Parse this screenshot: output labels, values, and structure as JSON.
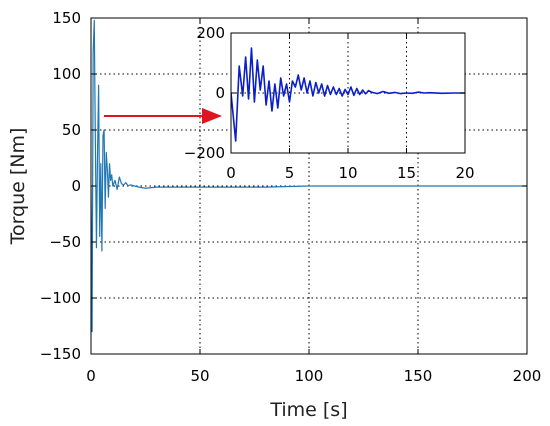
{
  "chart_data": {
    "type": "line",
    "xlabel": "Time [s]",
    "ylabel": "Torque [Nm]",
    "xlim": [
      0,
      200
    ],
    "ylim": [
      -150,
      150
    ],
    "xticks": [
      "0",
      "50",
      "100",
      "150",
      "200"
    ],
    "yticks": [
      "150",
      "100",
      "50",
      "0",
      "−50",
      "−100",
      "−150"
    ],
    "grid": true,
    "series": [
      {
        "color": "#1f77b4",
        "x": [
          0,
          0.5,
          1.0,
          1.5,
          2.0,
          2.5,
          3.0,
          3.5,
          4.0,
          4.5,
          5.0,
          5.5,
          6.0,
          6.5,
          7.0,
          7.5,
          8.0,
          8.5,
          9.0,
          9.5,
          10.0,
          11.0,
          12.0,
          13.0,
          14.0,
          15.0,
          16.0,
          17.0,
          18.0,
          20.0,
          22.0,
          25.0,
          30.0,
          40.0,
          60.0,
          80.0,
          100.0,
          150.0,
          200.0
        ],
        "y": [
          0,
          -130,
          120,
          148,
          40,
          -55,
          30,
          90,
          -45,
          20,
          -58,
          45,
          50,
          -20,
          30,
          15,
          -10,
          20,
          5,
          10,
          0,
          5,
          -3,
          8,
          2,
          1,
          3,
          0,
          1,
          0,
          -1,
          -2,
          -1,
          -1,
          -1,
          -1,
          0,
          0,
          0
        ]
      }
    ],
    "inset": {
      "xlim": [
        0,
        20
      ],
      "ylim": [
        -200,
        200
      ],
      "xticks": [
        "0",
        "5",
        "10",
        "15",
        "20"
      ],
      "yticks": [
        "200",
        "0",
        "−200"
      ],
      "grid": true,
      "series": [
        {
          "color": "#0a1fc8",
          "x": [
            0,
            0.4,
            0.7,
            1.0,
            1.25,
            1.5,
            1.75,
            2.0,
            2.25,
            2.5,
            2.75,
            3.0,
            3.25,
            3.5,
            3.75,
            4.0,
            4.25,
            4.5,
            4.75,
            5.0,
            5.25,
            5.5,
            5.75,
            6.0,
            6.25,
            6.5,
            6.75,
            7.0,
            7.25,
            7.5,
            7.75,
            8.0,
            8.25,
            8.5,
            8.75,
            9.0,
            9.25,
            9.5,
            9.75,
            10.0,
            10.25,
            10.5,
            10.75,
            11.0,
            11.25,
            11.5,
            11.75,
            12.0,
            12.5,
            13.0,
            13.5,
            14.0,
            14.5,
            15.0,
            15.5,
            16.0,
            16.5,
            17.0,
            18.0,
            19.0,
            20.0
          ],
          "y": [
            0,
            -160,
            90,
            -10,
            120,
            -20,
            150,
            -30,
            110,
            10,
            90,
            -40,
            40,
            -60,
            30,
            -50,
            50,
            -10,
            30,
            -30,
            40,
            20,
            60,
            10,
            50,
            0,
            40,
            -10,
            35,
            0,
            30,
            -10,
            25,
            -5,
            20,
            -5,
            15,
            -10,
            12,
            -5,
            20,
            -8,
            15,
            -5,
            10,
            -3,
            8,
            3,
            -2,
            5,
            -1,
            2,
            -2,
            0,
            -1,
            3,
            0,
            1,
            -1,
            0,
            0
          ]
        }
      ]
    },
    "annotation": "arrow pointing from the oscillation region of the main plot to the inset"
  }
}
